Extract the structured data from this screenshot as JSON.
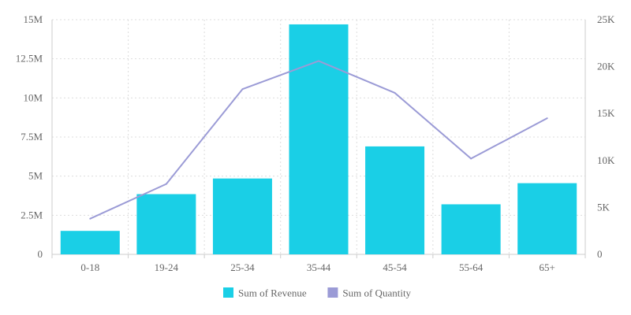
{
  "chart_data": {
    "type": "bar",
    "categories": [
      "0-18",
      "19-24",
      "25-34",
      "35-44",
      "45-54",
      "55-64",
      "65+"
    ],
    "series": [
      {
        "name": "Sum of Revenue",
        "type": "bar",
        "axis": "left",
        "color": "#1acfe6",
        "values": [
          1500000,
          3850000,
          4850000,
          14700000,
          6900000,
          3200000,
          4550000
        ]
      },
      {
        "name": "Sum of Quantity",
        "type": "line",
        "axis": "right",
        "color": "#9b9bd6",
        "values": [
          3800,
          7500,
          17600,
          20600,
          17200,
          10200,
          14500
        ]
      }
    ],
    "y_left": {
      "ylim": [
        0,
        15000000
      ],
      "ticks": [
        0,
        2500000,
        5000000,
        7500000,
        10000000,
        12500000,
        15000000
      ],
      "tick_labels": [
        "0",
        "2.5M",
        "5M",
        "7.5M",
        "10M",
        "12.5M",
        "15M"
      ]
    },
    "y_right": {
      "ylim": [
        0,
        25000
      ],
      "ticks": [
        0,
        5000,
        10000,
        15000,
        20000,
        25000
      ],
      "tick_labels": [
        "0",
        "5K",
        "10K",
        "15K",
        "20K",
        "25K"
      ]
    },
    "grid": true,
    "legend_position": "bottom-center",
    "title": "",
    "xlabel": "",
    "ylabel": ""
  }
}
